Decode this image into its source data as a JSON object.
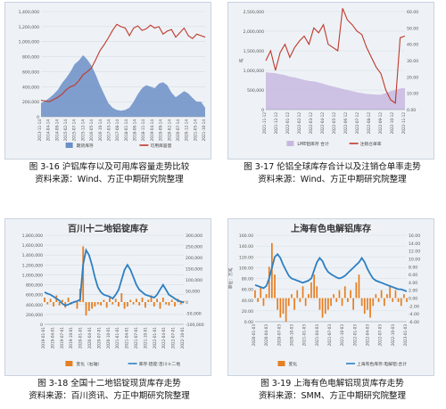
{
  "charts": [
    {
      "caption_title": "图 3-16  沪铝库存以及可用库容量走势比较",
      "caption_source": "资料来源：Wind、方正中期研究院整理",
      "chart_data": {
        "type": "area",
        "title": "",
        "y_ticks": [
          "0",
          "200,000",
          "400,000",
          "600,000",
          "800,000",
          "1,000,000",
          "1,200,000",
          "1,400,000"
        ],
        "ylim": [
          0,
          1400000
        ],
        "x_ticks": [
          "2013-11-14",
          "2014-04-14",
          "2014-09-14",
          "2015-02-14",
          "2015-07-14",
          "2015-12-14",
          "2016-05-14",
          "2016-10-14",
          "2017-03-14",
          "2017-08-14",
          "2018-01-14",
          "2018-06-14",
          "2018-11-14",
          "2019-04-14",
          "2019-09-14",
          "2020-02-14",
          "2020-07-14",
          "2020-12-14",
          "2021-05-14",
          "2021-10-14"
        ],
        "series": [
          {
            "name": "期货库存",
            "kind": "area",
            "color": "#6b8fc7",
            "values": [
              180000,
              210000,
              250000,
              300000,
              360000,
              450000,
              520000,
              600000,
              700000,
              750000,
              820000,
              760000,
              680000,
              560000,
              420000,
              300000,
              180000,
              120000,
              90000,
              80000,
              90000,
              120000,
              200000,
              300000,
              380000,
              420000,
              400000,
              380000,
              440000,
              460000,
              420000,
              320000,
              260000,
              300000,
              340000,
              310000,
              250000,
              200000,
              200000,
              120000
            ]
          },
          {
            "name": "可用库容量",
            "kind": "line",
            "color": "#c0392b",
            "values": [
              220000,
              210000,
              200000,
              230000,
              260000,
              300000,
              360000,
              400000,
              420000,
              480000,
              560000,
              600000,
              650000,
              760000,
              880000,
              960000,
              1050000,
              1150000,
              1230000,
              1200000,
              1180000,
              1080000,
              1180000,
              1210000,
              1150000,
              1170000,
              1220000,
              1180000,
              1200000,
              1100000,
              1140000,
              1160000,
              1060000,
              1120000,
              1180000,
              1080000,
              1040000,
              1100000,
              1080000,
              1060000
            ]
          }
        ]
      }
    },
    {
      "caption_title": "图 3-17  伦铝全球库存合计以及注销仓单率走势",
      "caption_source": "资料来源：Wind、方正中期研究院整理",
      "chart_data": {
        "type": "area",
        "title": "",
        "y_ticks": [
          "0",
          "500,000",
          "1,000,000",
          "1,500,000",
          "2,000,000",
          "2,500,000"
        ],
        "ylim": [
          0,
          2500000
        ],
        "y2_ticks": [
          "0.00",
          "10.00",
          "20.00",
          "30.00",
          "40.00",
          "50.00",
          "60.00"
        ],
        "y2lim": [
          0,
          60
        ],
        "ylabel": "吨",
        "x_ticks": [
          "2021-11-12",
          "2021-12-12",
          "2022-01-12",
          "2022-02-12",
          "2022-03-12",
          "2022-04-12",
          "2022-05-12",
          "2022-06-12",
          "2022-07-12",
          "2022-08-12",
          "2022-09-12",
          "2022-10-12",
          "2022-11-12"
        ],
        "series": [
          {
            "name": "LME铝库存 合计",
            "kind": "area",
            "color": "#c7b8e0",
            "values": [
              950000,
              940000,
              930000,
              900000,
              880000,
              840000,
              820000,
              790000,
              760000,
              730000,
              720000,
              690000,
              660000,
              620000,
              590000,
              560000,
              530000,
              500000,
              470000,
              440000,
              420000,
              400000,
              390000,
              380000,
              380000,
              420000,
              470000,
              500000,
              540000,
              550000
            ]
          },
          {
            "name": "注销仓单率",
            "kind": "line",
            "color": "#c0392b",
            "axis": "right",
            "values": [
              30,
              36,
              24,
              35,
              40,
              32,
              38,
              42,
              45,
              40,
              50,
              47,
              52,
              40,
              38,
              36,
              62,
              55,
              52,
              48,
              46,
              38,
              32,
              26,
              22,
              12,
              6,
              4,
              44,
              45
            ]
          }
        ]
      }
    },
    {
      "caption_title": "图 3-18  全国十二地铝锭现货库存走势",
      "caption_source": "资料来源：百川资讯、方正中期研究院整理",
      "chart_data": {
        "type": "bar",
        "title": "百川十二地铝锭库存",
        "y_ticks": [
          "0",
          "200,000",
          "400,000",
          "600,000",
          "800,000",
          "1,000,000",
          "1,200,000",
          "1,400,000",
          "1,600,000",
          "1,800,000"
        ],
        "ylim": [
          0,
          1800000
        ],
        "y2_ticks": [
          "-100,000",
          "-50,000",
          "0",
          "50,000",
          "100,000",
          "150,000",
          "200,000",
          "250,000",
          "300,000"
        ],
        "y2lim": [
          -100000,
          300000
        ],
        "x_ticks": [
          "2019-01-01",
          "2019-04-01",
          "2019-07-01",
          "2019-10-01",
          "2020-01-01",
          "2020-04-01",
          "2020-07-01",
          "2020-10-01",
          "2021-01-01",
          "2021-04-01",
          "2021-07-01",
          "2021-10-01",
          "2022-01-01",
          "2022-04-01",
          "2022-07-01",
          "2022-10-01"
        ],
        "series": [
          {
            "name": "变化（右轴）",
            "kind": "bar",
            "color": "#e67e22",
            "axis": "right",
            "values": [
              20000,
              -10000,
              15000,
              -20000,
              30000,
              -15000,
              10000,
              -25000,
              20000,
              -10000,
              5000,
              -30000,
              60000,
              250000,
              -60000,
              -40000,
              -30000,
              -20000,
              -10000,
              -15000,
              10000,
              -25000,
              20000,
              -10000,
              15000,
              -20000,
              40000,
              -30000,
              -20000,
              10000,
              -10000,
              15000,
              -15000,
              20000,
              -25000,
              10000,
              30000,
              -20000,
              15000,
              -30000,
              20000,
              -10000,
              -15000,
              10000,
              -20000,
              15000,
              -10000,
              5000
            ]
          },
          {
            "name": "库存:铝锭:百川十二地",
            "kind": "line",
            "color": "#2e7fc1",
            "values": [
              650000,
              620000,
              600000,
              560000,
              520000,
              480000,
              420000,
              380000,
              400000,
              430000,
              450000,
              470000,
              500000,
              1200000,
              1500000,
              1400000,
              1200000,
              950000,
              750000,
              650000,
              600000,
              580000,
              560000,
              520000,
              600000,
              700000,
              900000,
              1100000,
              1200000,
              1100000,
              950000,
              800000,
              700000,
              650000,
              600000,
              580000,
              560000,
              540000,
              600000,
              700000,
              800000,
              700000,
              600000,
              560000,
              520000,
              480000,
              460000,
              440000
            ]
          }
        ]
      }
    },
    {
      "caption_title": "图 3-19  上海有色电解铝现货库存走势",
      "caption_source": "资料来源：SMM、方正中期研究院整理",
      "chart_data": {
        "type": "bar",
        "title": "上海有色电解铝库存",
        "y_ticks": [
          "0.00",
          "20.00",
          "40.00",
          "60.00",
          "80.00",
          "100.00",
          "120.00",
          "140.00",
          "160.00"
        ],
        "ylim": [
          0,
          160
        ],
        "y2_ticks": [
          "-6.00",
          "-4.00",
          "-2.00",
          "0.00",
          "2.00",
          "4.00",
          "6.00",
          "8.00",
          "10.00",
          "12.00",
          "14.00",
          "16.00"
        ],
        "y2lim": [
          -6,
          16
        ],
        "ylabel": "单位：万吨",
        "x_ticks": [
          "2020-01-03",
          "2020-04-03",
          "2020-07-03",
          "2020-10-03",
          "2021-01-03",
          "2021-04-03",
          "2021-07-03",
          "2021-10-03",
          "2022-01-03",
          "2022-04-03",
          "2022-07-03",
          "2022-10-03",
          "2023-01-03"
        ],
        "series": [
          {
            "name": "变化",
            "kind": "bar",
            "color": "#e67e22",
            "axis": "right",
            "values": [
              2,
              -1,
              3,
              -2,
              1,
              8,
              14,
              6,
              -3,
              -5,
              -4,
              -6,
              -2,
              1,
              -3,
              2,
              -1,
              3,
              -2,
              1,
              4,
              6,
              3,
              -3,
              -5,
              -4,
              -3,
              -2,
              1,
              -1,
              2,
              -2,
              3,
              -1,
              2,
              -3,
              4,
              6,
              -2,
              -4,
              -3,
              -5,
              -2,
              1,
              -1,
              2,
              -2,
              1,
              3,
              -1,
              2,
              -1,
              -2,
              1,
              -1
            ]
          },
          {
            "name": "上海有色库存:电解铝:合计",
            "kind": "line",
            "color": "#2e7fc1",
            "values": [
              68,
              66,
              64,
              62,
              66,
              80,
              100,
              120,
              125,
              118,
              105,
              95,
              85,
              80,
              78,
              76,
              74,
              72,
              74,
              76,
              80,
              95,
              110,
              118,
              112,
              100,
              92,
              88,
              85,
              82,
              80,
              82,
              85,
              90,
              95,
              100,
              105,
              110,
              118,
              110,
              98,
              88,
              80,
              76,
              74,
              72,
              70,
              68,
              66,
              64,
              62,
              60,
              60,
              58,
              56
            ]
          }
        ]
      }
    }
  ]
}
